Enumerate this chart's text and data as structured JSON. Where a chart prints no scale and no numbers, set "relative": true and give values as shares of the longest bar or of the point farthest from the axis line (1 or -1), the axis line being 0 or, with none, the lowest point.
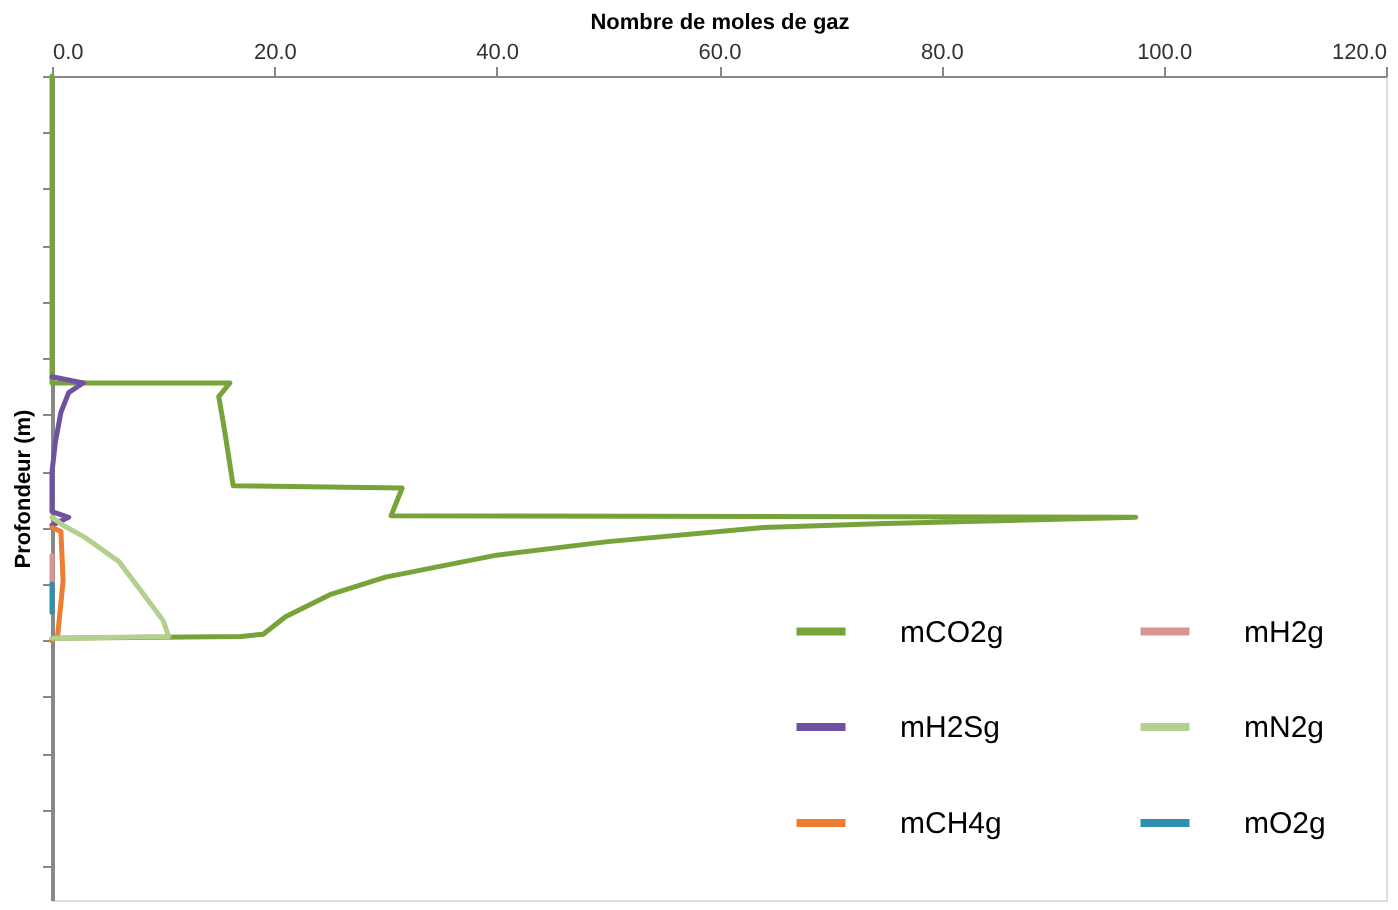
{
  "chart_data": {
    "type": "line",
    "xlabel": "Nombre de moles de gaz",
    "ylabel": "Profondeur (m)",
    "relative": true,
    "tick_labels": "x",
    "grid": false,
    "legend": "bottom right",
    "xlim": [
      0,
      120
    ],
    "xticks": [
      {
        "value": 0,
        "label": "0.0"
      },
      {
        "value": 20,
        "label": "20.0"
      },
      {
        "value": 40,
        "label": "40.0"
      },
      {
        "value": 60,
        "label": "60.0"
      },
      {
        "value": 80,
        "label": "80.0"
      },
      {
        "value": 100,
        "label": "100.0"
      },
      {
        "value": 120,
        "label": "120.0"
      }
    ],
    "series": [
      {
        "name": "mCO2g",
        "color": "#77a33a",
        "x": [
          0,
          0,
          16,
          15,
          15.5,
          16.3,
          31.5,
          30.5,
          97.5,
          75,
          64,
          50,
          40,
          30,
          25,
          21,
          19,
          17,
          0,
          0
        ],
        "values": [
          0,
          -0.544,
          -0.544,
          -0.568,
          -0.625,
          -0.726,
          -0.73,
          -0.779,
          -0.782,
          -0.793,
          -0.8,
          -0.825,
          -0.849,
          -0.888,
          -0.919,
          -0.958,
          -0.989,
          -0.993,
          -0.996,
          -1.0
        ]
      },
      {
        "name": "mH2Sg",
        "color": "#7050a0",
        "x": [
          0,
          2.8,
          1.5,
          0.8,
          0.3,
          0,
          0,
          1.5,
          0
        ],
        "values": [
          -0.533,
          -0.544,
          -0.561,
          -0.596,
          -0.649,
          -0.702,
          -0.772,
          -0.782,
          -0.796
        ]
      },
      {
        "name": "mCH4g",
        "color": "#ed7d31",
        "x": [
          0,
          0.8,
          1,
          0.5,
          0
        ],
        "values": [
          -0.8,
          -0.807,
          -0.895,
          -0.993,
          -1.0
        ]
      },
      {
        "name": "mH2g",
        "color": "#d99594",
        "x": [
          0,
          0
        ],
        "values": [
          -0.85,
          -0.9
        ]
      },
      {
        "name": "mN2g",
        "color": "#b3d08f",
        "x": [
          0,
          1,
          3,
          6,
          8,
          10,
          10.5,
          0
        ],
        "values": [
          -0.782,
          -0.796,
          -0.818,
          -0.86,
          -0.912,
          -0.965,
          -0.993,
          -0.996
        ]
      },
      {
        "name": "mO2g",
        "color": "#2f8fb0",
        "x": [
          0,
          0
        ],
        "values": [
          -0.9,
          -0.95
        ]
      }
    ]
  }
}
